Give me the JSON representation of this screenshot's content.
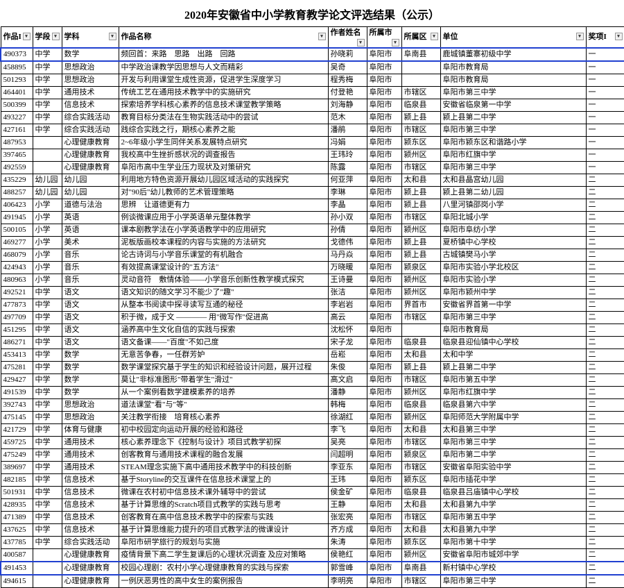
{
  "page_title": "2020年安徽省中小学教育教学论文评选结果（公示）",
  "headers": {
    "id": "作品I",
    "stage": "学段",
    "subject": "学科",
    "title": "作品名称",
    "author": "作者姓名",
    "city": "所属市",
    "district": "所属区",
    "unit": "单位",
    "award": "奖项I"
  },
  "rows": [
    {
      "id": "490373",
      "stage": "中学",
      "subject": "数学",
      "title": "频回首：来路　思路　出路　回路",
      "author": "孙晓莉",
      "city": "阜阳市",
      "district": "阜南县",
      "unit": "鹿城镇董寨初级中学",
      "award": "一",
      "hl": true
    },
    {
      "id": "458895",
      "stage": "中学",
      "subject": "思想政治",
      "title": "中学政治课教学因思想与人文而精彩",
      "author": "吴奇",
      "city": "阜阳市",
      "district": "",
      "unit": "阜阳市教育局",
      "award": "一"
    },
    {
      "id": "501293",
      "stage": "中学",
      "subject": "思想政治",
      "title": "开发与利用课堂生成性资源，促进学生深度学习",
      "author": "程秀梅",
      "city": "阜阳市",
      "district": "",
      "unit": "阜阳市教育局",
      "award": "一"
    },
    {
      "id": "464401",
      "stage": "中学",
      "subject": "通用技术",
      "title": "传统工艺在通用技术教学中的实施研究",
      "author": "付登艳",
      "city": "阜阳市",
      "district": "市辖区",
      "unit": "阜阳市第三中学",
      "award": "一"
    },
    {
      "id": "500399",
      "stage": "中学",
      "subject": "信息技术",
      "title": "探索培养学科核心素养的信息技术课堂教学策略",
      "author": "刘海静",
      "city": "阜阳市",
      "district": "临泉县",
      "unit": "安徽省临泉第一中学",
      "award": "一"
    },
    {
      "id": "493227",
      "stage": "中学",
      "subject": "综合实践活动",
      "title": "教育目标分类法在生物实践活动中的尝试",
      "author": "范木",
      "city": "阜阳市",
      "district": "颍上县",
      "unit": "颍上县第二中学",
      "award": "一"
    },
    {
      "id": "427161",
      "stage": "中学",
      "subject": "综合实践活动",
      "title": "践综合实践之行，期核心素养之能",
      "author": "潘鹃",
      "city": "阜阳市",
      "district": "市辖区",
      "unit": "阜阳市第三中学",
      "award": "一"
    },
    {
      "id": "487953",
      "stage": "",
      "subject": "心理健康教育",
      "title": "2~6年级小学生同伴关系发展特点研究",
      "author": "冯娟",
      "city": "阜阳市",
      "district": "颍东区",
      "unit": "阜阳市颍东区和谐路小学",
      "award": "一"
    },
    {
      "id": "397465",
      "stage": "",
      "subject": "心理健康教育",
      "title": "我校高中生挫折感状况的调查报告",
      "author": "王玮玲",
      "city": "阜阳市",
      "district": "颍州区",
      "unit": "阜阳市红旗中学",
      "award": "一"
    },
    {
      "id": "492559",
      "stage": "",
      "subject": "心理健康教育",
      "title": "阜阳市高中生学业压力现状及对策研究",
      "author": "陈露",
      "city": "阜阳市",
      "district": "市辖区",
      "unit": "阜阳市第三中学",
      "award": "一"
    },
    {
      "id": "435229",
      "stage": "幼儿园",
      "subject": "幼儿园",
      "title": "利用地方特色资源开展幼儿园区域活动的实践探究",
      "author": "何亚萍",
      "city": "阜阳市",
      "district": "太和县",
      "unit": "太和县晶宫幼儿园",
      "award": "二"
    },
    {
      "id": "488257",
      "stage": "幼儿园",
      "subject": "幼儿园",
      "title": "对\"90后\"幼儿教师的艺术管理策略",
      "author": "李琳",
      "city": "阜阳市",
      "district": "颍上县",
      "unit": "颍上县第二幼儿园",
      "award": "二"
    },
    {
      "id": "406423",
      "stage": "小学",
      "subject": "道德与法治",
      "title": "思辨　让道德更有力",
      "author": "李晶",
      "city": "阜阳市",
      "district": "颍上县",
      "unit": "八里河镇邵岗小学",
      "award": "二"
    },
    {
      "id": "491945",
      "stage": "小学",
      "subject": "英语",
      "title": "例谈微课应用于小学英语单元整体教学",
      "author": "孙小双",
      "city": "阜阳市",
      "district": "市辖区",
      "unit": "阜阳北城小学",
      "award": "二"
    },
    {
      "id": "500105",
      "stage": "小学",
      "subject": "英语",
      "title": "课本剧教学法在小学英语教学中的应用研究",
      "author": "孙倩",
      "city": "阜阳市",
      "district": "颍州区",
      "unit": "阜阳市阜纺小学",
      "award": "二"
    },
    {
      "id": "469277",
      "stage": "小学",
      "subject": "美术",
      "title": "泥板版画校本课程的内容与实施的方法研究",
      "author": "戈德伟",
      "city": "阜阳市",
      "district": "颍上县",
      "unit": "夏桥镇中心学校",
      "award": "二"
    },
    {
      "id": "468079",
      "stage": "小学",
      "subject": "音乐",
      "title": "论古诗词与小学音乐课堂的有机融合",
      "author": "马丹焱",
      "city": "阜阳市",
      "district": "颍上县",
      "unit": "古城镇樊马小学",
      "award": "二"
    },
    {
      "id": "424943",
      "stage": "小学",
      "subject": "音乐",
      "title": "有效提高课堂设计的\"五方法\"",
      "author": "万晓暖",
      "city": "阜阳市",
      "district": "颍泉区",
      "unit": "阜阳市实验小学北校区",
      "award": "二"
    },
    {
      "id": "480963",
      "stage": "小学",
      "subject": "音乐",
      "title": "灵动音符　敷情体验——小学音乐创新性教学模式探究",
      "author": "王诗曼",
      "city": "阜阳市",
      "district": "颍州区",
      "unit": "阜阳市实验小学",
      "award": "二"
    },
    {
      "id": "492521",
      "stage": "中学",
      "subject": "语文",
      "title": "语文知识的随文学习不能少了\"趣\"",
      "author": "张洁",
      "city": "阜阳市",
      "district": "颍州区",
      "unit": "阜阳市颍州中学",
      "award": "二"
    },
    {
      "id": "477873",
      "stage": "中学",
      "subject": "语文",
      "title": "从整本书阅读中探寻读写互通的秘径",
      "author": "李岩岩",
      "city": "阜阳市",
      "district": "界首市",
      "unit": "安徽省界首第一中学",
      "award": "二"
    },
    {
      "id": "497709",
      "stage": "中学",
      "subject": "语文",
      "title": "积于微，成于文 ———— 用\"微写作\"促进高",
      "author": "高云",
      "city": "阜阳市",
      "district": "市辖区",
      "unit": "阜阳市第三中学",
      "award": "二"
    },
    {
      "id": "451295",
      "stage": "中学",
      "subject": "语文",
      "title": "涵养高中生文化自信的实践与探索",
      "author": "沈松怀",
      "city": "阜阳市",
      "district": "",
      "unit": "阜阳市教育局",
      "award": "二"
    },
    {
      "id": "486271",
      "stage": "中学",
      "subject": "语文",
      "title": "语文备课——\"百度\"不如己度",
      "author": "宋子龙",
      "city": "阜阳市",
      "district": "临泉县",
      "unit": "临泉县迎仙镇中心学校",
      "award": "二"
    },
    {
      "id": "453413",
      "stage": "中学",
      "subject": "数学",
      "title": "无意苦争春，一任群芳妒",
      "author": "岳崧",
      "city": "阜阳市",
      "district": "太和县",
      "unit": "太和中学",
      "award": "二"
    },
    {
      "id": "475281",
      "stage": "中学",
      "subject": "数学",
      "title": "数学课堂探究基于学生的知识和经验设计问题，展开过程",
      "author": "朱俊",
      "city": "阜阳市",
      "district": "颍上县",
      "unit": "颍上县第二中学",
      "award": "二"
    },
    {
      "id": "429427",
      "stage": "中学",
      "subject": "数学",
      "title": "莫让\"非标准图形\"带着学生\"滑过\"",
      "author": "高文启",
      "city": "阜阳市",
      "district": "市辖区",
      "unit": "阜阳市第五中学",
      "award": "二"
    },
    {
      "id": "491539",
      "stage": "中学",
      "subject": "数学",
      "title": "从一个案例看数学建模素养的培养",
      "author": "潘静",
      "city": "阜阳市",
      "district": "颍州区",
      "unit": "阜阳市红旗中学",
      "award": "二"
    },
    {
      "id": "392743",
      "stage": "中学",
      "subject": "思想政治",
      "title": "道法课堂\"看\"与\"等\"",
      "author": "韩梅",
      "city": "阜阳市",
      "district": "临泉县",
      "unit": "临泉县第六中学",
      "award": "二"
    },
    {
      "id": "475145",
      "stage": "中学",
      "subject": "思想政治",
      "title": "关注教学衔接　培育核心素养",
      "author": "徐湖红",
      "city": "阜阳市",
      "district": "颍州区",
      "unit": "阜阳师范大学附属中学",
      "award": "二"
    },
    {
      "id": "421729",
      "stage": "中学",
      "subject": "体育与健康",
      "title": "初中校园定向运动开展的经验和路径",
      "author": "李飞",
      "city": "阜阳市",
      "district": "太和县",
      "unit": "太和县第三中学",
      "award": "二"
    },
    {
      "id": "459725",
      "stage": "中学",
      "subject": "通用技术",
      "title": "核心素养理念下《控制与设计》项目式教学初探",
      "author": "吴亮",
      "city": "阜阳市",
      "district": "市辖区",
      "unit": "阜阳市第三中学",
      "award": "二"
    },
    {
      "id": "475249",
      "stage": "中学",
      "subject": "通用技术",
      "title": "创客教育与通用技术课程的融合发展",
      "author": "闫超明",
      "city": "阜阳市",
      "district": "颍泉区",
      "unit": "阜阳市第二中学",
      "award": "二"
    },
    {
      "id": "389697",
      "stage": "中学",
      "subject": "通用技术",
      "title": "STEAM理念实施下高中通用技术教学中的科技创新",
      "author": "李亚东",
      "city": "阜阳市",
      "district": "市辖区",
      "unit": "安徽省阜阳实验中学",
      "award": "二"
    },
    {
      "id": "482185",
      "stage": "中学",
      "subject": "信息技术",
      "title": "基于Storyline的交互课件在信息技术课堂上的",
      "author": "王玮",
      "city": "阜阳市",
      "district": "颍东区",
      "unit": "阜阳市插花中学",
      "award": "二"
    },
    {
      "id": "501931",
      "stage": "中学",
      "subject": "信息技术",
      "title": "微课在农村初中信息技术课外辅导中的尝试",
      "author": "侯金矿",
      "city": "阜阳市",
      "district": "临泉县",
      "unit": "临泉县吕庙镇中心学校",
      "award": "二"
    },
    {
      "id": "428935",
      "stage": "中学",
      "subject": "信息技术",
      "title": "基于计算思维的Scratch项目式教学的实践与思考",
      "author": "王静",
      "city": "阜阳市",
      "district": "太和县",
      "unit": "太和县第九中学",
      "award": "二"
    },
    {
      "id": "471389",
      "stage": "中学",
      "subject": "信息技术",
      "title": "创客教育在高中信息技术教学中的探索与实践",
      "author": "张宏亮",
      "city": "阜阳市",
      "district": "市辖区",
      "unit": "阜阳市第五中学",
      "award": "二"
    },
    {
      "id": "437625",
      "stage": "中学",
      "subject": "信息技术",
      "title": "基于计算思维能力提升的项目式教学法的微课设计",
      "author": "齐方成",
      "city": "阜阳市",
      "district": "太和县",
      "unit": "太和县第九中学",
      "award": "二"
    },
    {
      "id": "437785",
      "stage": "中学",
      "subject": "综合实践活动",
      "title": "阜阳市研学旅行的规划与实施",
      "author": "朱涛",
      "city": "阜阳市",
      "district": "颍东区",
      "unit": "阜阳市第十中学",
      "award": "二"
    },
    {
      "id": "400587",
      "stage": "",
      "subject": "心理健康教育",
      "title": "疫情背景下高二学生复课后的心理状况调查  及应对策略",
      "author": "侯艳红",
      "city": "阜阳市",
      "district": "颍州区",
      "unit": "安徽省阜阳市城郊中学",
      "award": "二"
    },
    {
      "id": "491453",
      "stage": "",
      "subject": "心理健康教育",
      "title": "校园心理剧：农村小学心理健康教育的实践与探索",
      "author": "郭雪峰",
      "city": "阜阳市",
      "district": "阜南县",
      "unit": "新村镇中心学校",
      "award": "二",
      "hl": true
    },
    {
      "id": "494615",
      "stage": "",
      "subject": "心理健康教育",
      "title": "一例厌恶男性的高中女生的案例报告",
      "author": "李明亮",
      "city": "阜阳市",
      "district": "市辖区",
      "unit": "阜阳市第三中学",
      "award": "二"
    }
  ],
  "highlight_color": "#2040d0"
}
